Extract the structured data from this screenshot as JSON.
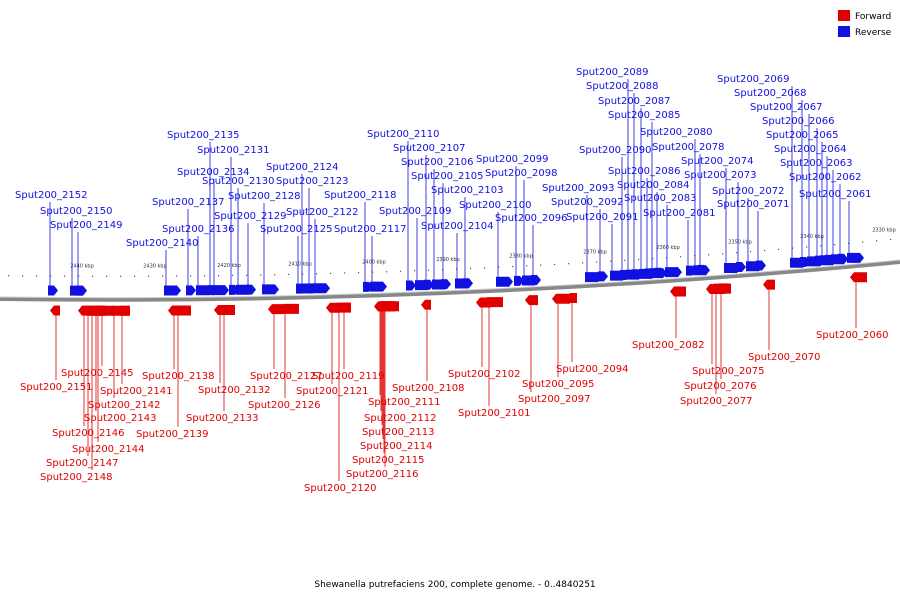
{
  "caption": "Shewanella putrefaciens 200, complete genome. - 0..4840251",
  "legend": {
    "forward_label": "Forward",
    "reverse_label": "Reverse",
    "forward_color": "#e00000",
    "reverse_color": "#1010e0"
  },
  "scale_ticks": [
    "2440 kbp",
    "2430 kbp",
    "2420 kbp",
    "2410 kbp",
    "2400 kbp",
    "2390 kbp",
    "2380 kbp",
    "2370 kbp",
    "2360 kbp",
    "2350 kbp",
    "2340 kbp",
    "2330 kbp"
  ],
  "reverse_genes": [
    "Sput200_2152",
    "Sput200_2150",
    "Sput200_2149",
    "Sput200_2140",
    "Sput200_2137",
    "Sput200_2136",
    "Sput200_2135",
    "Sput200_2134",
    "Sput200_2131",
    "Sput200_2130",
    "Sput200_2129",
    "Sput200_2128",
    "Sput200_2125",
    "Sput200_2124",
    "Sput200_2123",
    "Sput200_2122",
    "Sput200_2118",
    "Sput200_2117",
    "Sput200_2110",
    "Sput200_2109",
    "Sput200_2107",
    "Sput200_2106",
    "Sput200_2105",
    "Sput200_2104",
    "Sput200_2103",
    "Sput200_2100",
    "Sput200_2099",
    "Sput200_2098",
    "Sput200_2096",
    "Sput200_2093",
    "Sput200_2092",
    "Sput200_2091",
    "Sput200_2090",
    "Sput200_2089",
    "Sput200_2088",
    "Sput200_2087",
    "Sput200_2086",
    "Sput200_2085",
    "Sput200_2084",
    "Sput200_2083",
    "Sput200_2081",
    "Sput200_2080",
    "Sput200_2078",
    "Sput200_2074",
    "Sput200_2073",
    "Sput200_2072",
    "Sput200_2071",
    "Sput200_2069",
    "Sput200_2068",
    "Sput200_2067",
    "Sput200_2066",
    "Sput200_2065",
    "Sput200_2064",
    "Sput200_2063",
    "Sput200_2062",
    "Sput200_2061"
  ],
  "forward_genes": [
    "Sput200_2151",
    "Sput200_2148",
    "Sput200_2147",
    "Sput200_2146",
    "Sput200_2145",
    "Sput200_2144",
    "Sput200_2143",
    "Sput200_2142",
    "Sput200_2141",
    "Sput200_2139",
    "Sput200_2138",
    "Sput200_2133",
    "Sput200_2132",
    "Sput200_2127",
    "Sput200_2126",
    "Sput200_2121",
    "Sput200_2120",
    "Sput200_2119",
    "Sput200_2116",
    "Sput200_2115",
    "Sput200_2114",
    "Sput200_2113",
    "Sput200_2112",
    "Sput200_2111",
    "Sput200_2108",
    "Sput200_2102",
    "Sput200_2101",
    "Sput200_2097",
    "Sput200_2095",
    "Sput200_2094",
    "Sput200_2082",
    "Sput200_2077",
    "Sput200_2076",
    "Sput200_2075",
    "Sput200_2070",
    "Sput200_2060"
  ]
}
